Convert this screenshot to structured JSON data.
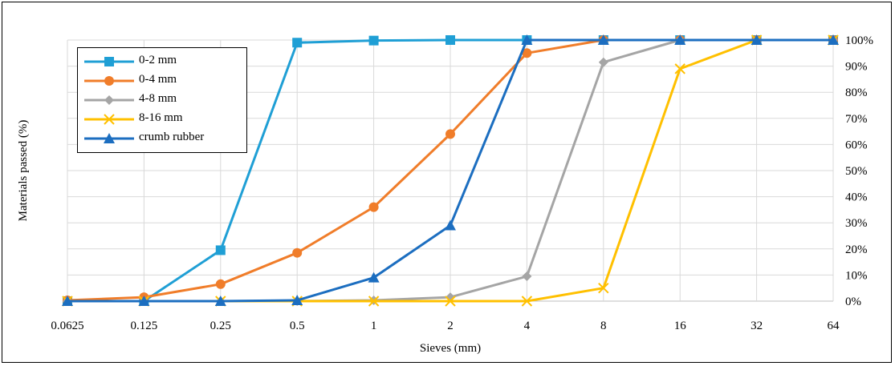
{
  "chart_data": {
    "type": "line",
    "title": "",
    "xlabel": "Sieves (mm)",
    "ylabel": "Materials passed (%)",
    "x": [
      "0.0625",
      "0.125",
      "0.25",
      "0.5",
      "1",
      "2",
      "4",
      "8",
      "16",
      "32",
      "64"
    ],
    "x_scale": "log2",
    "yticks": [
      "0%",
      "10%",
      "20%",
      "30%",
      "40%",
      "50%",
      "60%",
      "70%",
      "80%",
      "90%",
      "100%"
    ],
    "ylim": [
      0,
      100
    ],
    "y_axis_side": "right",
    "grid": true,
    "legend_position": "top-left",
    "series": [
      {
        "name": "0-2 mm",
        "color": "#1F9FD5",
        "marker": "square",
        "values": [
          0,
          0,
          19.5,
          99,
          99.8,
          100,
          100,
          100,
          100,
          100,
          100
        ]
      },
      {
        "name": "0-4 mm",
        "color": "#F07D2A",
        "marker": "circle",
        "values": [
          0.3,
          1.5,
          6.5,
          18.5,
          36,
          64,
          95,
          100,
          100,
          100,
          100
        ]
      },
      {
        "name": "4-8 mm",
        "color": "#A5A5A5",
        "marker": "diamond",
        "values": [
          0,
          0,
          0,
          0,
          0.3,
          1.5,
          9.5,
          91.5,
          100,
          100,
          100
        ]
      },
      {
        "name": "8-16 mm",
        "color": "#FFC000",
        "marker": "x",
        "values": [
          0,
          0,
          0,
          0,
          0,
          0,
          0,
          5,
          89,
          100,
          100
        ]
      },
      {
        "name": "crumb rubber",
        "color": "#1C6EC0",
        "marker": "triangle",
        "values": [
          0,
          0,
          0,
          0.3,
          9,
          29,
          100,
          100,
          100,
          100,
          100
        ]
      }
    ]
  }
}
